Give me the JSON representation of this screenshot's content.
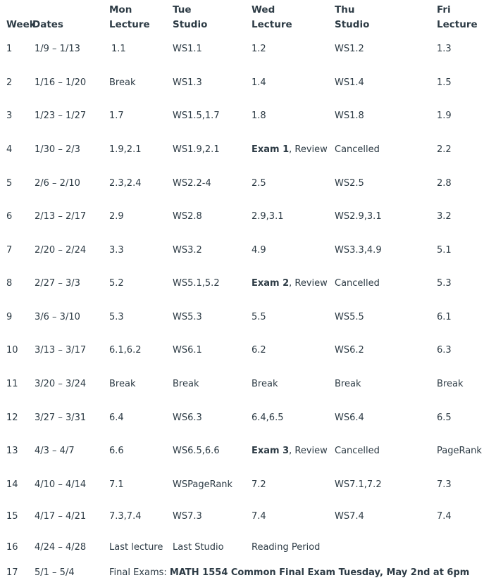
{
  "header": {
    "week": "Week",
    "dates": "Dates",
    "mon": [
      "Mon",
      "Lecture"
    ],
    "tue": [
      "Tue",
      "Studio"
    ],
    "wed": [
      "Wed",
      "Lecture"
    ],
    "thu": [
      "Thu",
      "Studio"
    ],
    "fri": [
      "Fri",
      "Lecture"
    ]
  },
  "rows": [
    {
      "week": "1",
      "dates": "1/9 – 1/13",
      "mon": "1.1",
      "tue": "WS1.1",
      "wed": "1.2",
      "wed_bold": "",
      "thu": "WS1.2",
      "fri": "1.3"
    },
    {
      "week": "2",
      "dates": "1/16 – 1/20",
      "mon": "Break",
      "tue": "WS1.3",
      "wed": "1.4",
      "wed_bold": "",
      "thu": "WS1.4",
      "fri": "1.5"
    },
    {
      "week": "3",
      "dates": "1/23 – 1/27",
      "mon": "1.7",
      "tue": "WS1.5,1.7",
      "wed": "1.8",
      "wed_bold": "",
      "thu": "WS1.8",
      "fri": "1.9"
    },
    {
      "week": "4",
      "dates": "1/30 – 2/3",
      "mon": "1.9,2.1",
      "tue": "WS1.9,2.1",
      "wed": ", Review",
      "wed_bold": "Exam 1",
      "thu": "Cancelled",
      "fri": "2.2"
    },
    {
      "week": "5",
      "dates": "2/6 – 2/10",
      "mon": "2.3,2.4",
      "tue": "WS2.2-4",
      "wed": "2.5",
      "wed_bold": "",
      "thu": "WS2.5",
      "fri": "2.8"
    },
    {
      "week": "6",
      "dates": "2/13 – 2/17",
      "mon": "2.9",
      "tue": "WS2.8",
      "wed": "2.9,3.1",
      "wed_bold": "",
      "thu": "WS2.9,3.1",
      "fri": "3.2"
    },
    {
      "week": "7",
      "dates": "2/20 – 2/24",
      "mon": "3.3",
      "tue": "WS3.2",
      "wed": "4.9",
      "wed_bold": "",
      "thu": "WS3.3,4.9",
      "fri": "5.1"
    },
    {
      "week": "8",
      "dates": "2/27 – 3/3",
      "mon": "5.2",
      "tue": "WS5.1,5.2",
      "wed": ", Review",
      "wed_bold": "Exam 2",
      "thu": "Cancelled",
      "fri": "5.3"
    },
    {
      "week": "9",
      "dates": "3/6 – 3/10",
      "mon": "5.3",
      "tue": "WS5.3",
      "wed": "5.5",
      "wed_bold": "",
      "thu": "WS5.5",
      "fri": "6.1"
    },
    {
      "week": "10",
      "dates": "3/13 – 3/17",
      "mon": "6.1,6.2",
      "tue": "WS6.1",
      "wed": "6.2",
      "wed_bold": "",
      "thu": "WS6.2",
      "fri": "6.3"
    },
    {
      "week": "11",
      "dates": "3/20 – 3/24",
      "mon": "Break",
      "tue": "Break",
      "wed": "Break",
      "wed_bold": "",
      "thu": "Break",
      "fri": "Break"
    },
    {
      "week": "12",
      "dates": "3/27 – 3/31",
      "mon": "6.4",
      "tue": "WS6.3",
      "wed": "6.4,6.5",
      "wed_bold": "",
      "thu": "WS6.4",
      "fri": "6.5"
    },
    {
      "week": "13",
      "dates": "4/3 – 4/7",
      "mon": "6.6",
      "tue": "WS6.5,6.6",
      "wed": ", Review",
      "wed_bold": "Exam 3",
      "thu": "Cancelled",
      "fri": "PageRank"
    },
    {
      "week": "14",
      "dates": "4/10 – 4/14",
      "mon": "7.1",
      "tue": "WSPageRank",
      "wed": "7.2",
      "wed_bold": "",
      "thu": "WS7.1,7.2",
      "fri": "7.3"
    },
    {
      "week": "15",
      "dates": "4/17 – 4/21",
      "mon": "7.3,7.4",
      "tue": "WS7.3",
      "wed": "7.4",
      "wed_bold": "",
      "thu": "WS7.4",
      "fri": "7.4"
    },
    {
      "week": "16",
      "dates": "4/24 – 4/28",
      "mon": "Last lecture",
      "tue": "Last Studio",
      "wed": "Reading Period",
      "wed_bold": "",
      "thu": "",
      "fri": ""
    }
  ],
  "final_row": {
    "week": "17",
    "dates": "5/1 – 5/4",
    "label": "Final Exams: ",
    "detail": "MATH 1554 Common Final Exam Tuesday, May 2nd at 6pm"
  }
}
